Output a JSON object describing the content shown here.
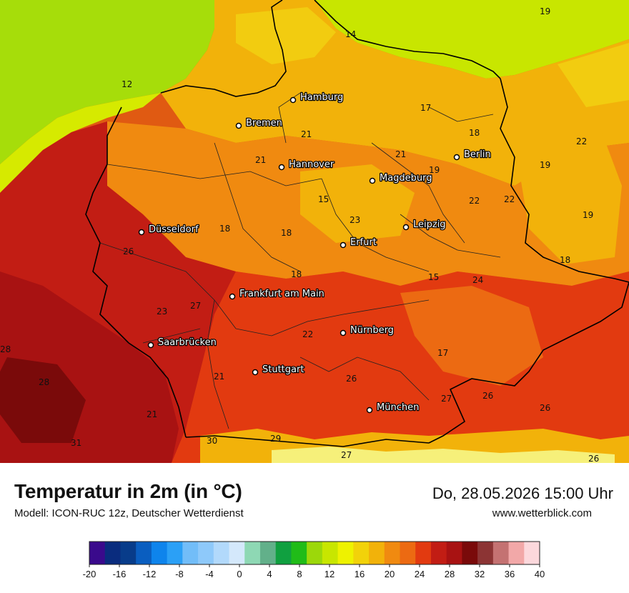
{
  "map": {
    "region": "Germany",
    "colors": {
      "sea_cool": "#a6dd0a",
      "sea_mild": "#d6ea00",
      "temp_12": "#c8e600",
      "temp_14": "#eef200",
      "temp_16": "#f2cc10",
      "temp_18": "#f2b20a",
      "temp_20": "#f08a10",
      "temp_22": "#ee6a10",
      "temp_24": "#e23a10",
      "temp_26": "#c21d14",
      "temp_28": "#a81212",
      "temp_30": "#7a0a0a",
      "alps_snow": "#f6f07a"
    },
    "cities": [
      {
        "name": "Hamburg"
      },
      {
        "name": "Bremen"
      },
      {
        "name": "Hannover"
      },
      {
        "name": "Berlin"
      },
      {
        "name": "Magdeburg"
      },
      {
        "name": "Düsseldorf"
      },
      {
        "name": "Leipzig"
      },
      {
        "name": "Erfurt"
      },
      {
        "name": "Frankfurt am Main"
      },
      {
        "name": "Nürnberg"
      },
      {
        "name": "Saarbrücken"
      },
      {
        "name": "Stuttgart"
      },
      {
        "name": "München"
      }
    ],
    "value_labels": [
      "19",
      "14",
      "12",
      "17",
      "21",
      "18",
      "21",
      "21",
      "19",
      "22",
      "15",
      "22",
      "22",
      "19",
      "23",
      "18",
      "18",
      "26",
      "19",
      "18",
      "15",
      "18",
      "24",
      "27",
      "23",
      "22",
      "17",
      "28",
      "28",
      "21",
      "26",
      "27",
      "26",
      "21",
      "26",
      "29",
      "31",
      "30",
      "27",
      "26"
    ]
  },
  "footer": {
    "title": "Temperatur in 2m (in °C)",
    "model": "Modell: ICON-RUC 12z, Deutscher Wetterdienst",
    "datetime": "Do, 28.05.2026 15:00 Uhr",
    "website": "www.wetterblick.com"
  },
  "legend": {
    "ticks": [
      "-20",
      "-16",
      "-12",
      "-8",
      "-4",
      "0",
      "4",
      "8",
      "12",
      "16",
      "20",
      "24",
      "28",
      "32",
      "36",
      "40"
    ],
    "colors": [
      "#3a0a8c",
      "#0a2c7e",
      "#083c8a",
      "#0a5ec0",
      "#0e84ec",
      "#2ba0f6",
      "#72bdf8",
      "#8ec9fa",
      "#b2d9fb",
      "#d4e8fb",
      "#8ed8b4",
      "#62b08a",
      "#10a040",
      "#20bc18",
      "#9cd80a",
      "#c8e600",
      "#eef200",
      "#f2d20a",
      "#f2b20a",
      "#f08a10",
      "#ec6a12",
      "#e23a10",
      "#c21d14",
      "#a81212",
      "#7a0a0a",
      "#8c3434",
      "#c47272",
      "#f2a8a8",
      "#fcd8dc"
    ]
  }
}
